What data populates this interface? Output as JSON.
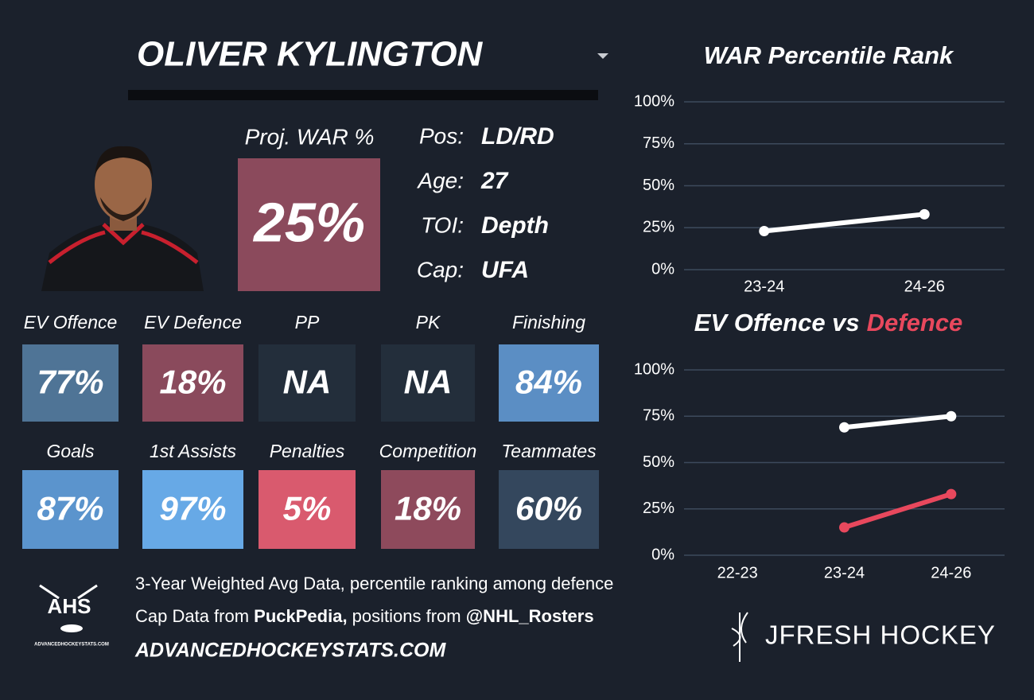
{
  "header": {
    "player_name": "OLIVER KYLINGTON"
  },
  "projection": {
    "label": "Proj. WAR %",
    "value": "25%",
    "color": "#8b4a5c"
  },
  "bio": [
    {
      "label": "Pos:",
      "value": "LD/RD"
    },
    {
      "label": "Age:",
      "value": "27"
    },
    {
      "label": "TOI:",
      "value": "Depth"
    },
    {
      "label": "Cap:",
      "value": "UFA"
    }
  ],
  "tiles": [
    {
      "label": "EV Offence",
      "value": "77%",
      "color": "#4f7496"
    },
    {
      "label": "EV Defence",
      "value": "18%",
      "color": "#8a4a5c"
    },
    {
      "label": "PP",
      "value": "NA",
      "color": "#232e3b"
    },
    {
      "label": "PK",
      "value": "NA",
      "color": "#232e3b"
    },
    {
      "label": "Finishing",
      "value": "84%",
      "color": "#5b8ec4"
    },
    {
      "label": "Goals",
      "value": "87%",
      "color": "#5b94cd"
    },
    {
      "label": "1st Assists",
      "value": "97%",
      "color": "#67a9e6"
    },
    {
      "label": "Penalties",
      "value": "5%",
      "color": "#d95a6e"
    },
    {
      "label": "Competition",
      "value": "18%",
      "color": "#8e4a5c"
    },
    {
      "label": "Teammates",
      "value": "60%",
      "color": "#34475d"
    }
  ],
  "footer": {
    "note": "3-Year Weighted Avg Data, percentile ranking among defence",
    "credit": [
      {
        "text": "Cap Data from ",
        "bold": false
      },
      {
        "text": "PuckPedia,",
        "bold": true
      },
      {
        "text": " positions from ",
        "bold": false
      },
      {
        "text": "@NHL_Rosters",
        "bold": true
      }
    ],
    "site": "ADVANCEDHOCKEYSTATS.COM",
    "logo_text": "AHS",
    "logo_caption": "ADVANCEDHOCKEYSTATS.COM",
    "brand": "JFRESH HOCKEY"
  },
  "chart_data": [
    {
      "type": "line",
      "title": "WAR Percentile Rank",
      "categories": [
        "23-24",
        "24-26"
      ],
      "series": [
        {
          "color": "#ffffff",
          "values": [
            23,
            33
          ]
        }
      ],
      "ylim": [
        0,
        100
      ],
      "yticks": [
        {
          "value": 0,
          "label": "0%"
        },
        {
          "value": 25,
          "label": "25%"
        },
        {
          "value": 50,
          "label": "50%"
        },
        {
          "value": 75,
          "label": "75%"
        },
        {
          "value": 100,
          "label": "100%"
        }
      ],
      "grid": true
    },
    {
      "type": "line",
      "title": "EV Offence vs",
      "title_accent": "Defence",
      "title_accent_color": "#e8485d",
      "categories": [
        "22-23",
        "23-24",
        "24-26"
      ],
      "series": [
        {
          "color": "#ffffff",
          "values": [
            null,
            69,
            75
          ]
        },
        {
          "color": "#e8485d",
          "values": [
            null,
            15,
            33
          ]
        }
      ],
      "ylim": [
        0,
        100
      ],
      "yticks": [
        {
          "value": 0,
          "label": "0%"
        },
        {
          "value": 25,
          "label": "25%"
        },
        {
          "value": 50,
          "label": "50%"
        },
        {
          "value": 75,
          "label": "75%"
        },
        {
          "value": 100,
          "label": "100%"
        }
      ],
      "grid": true
    }
  ]
}
